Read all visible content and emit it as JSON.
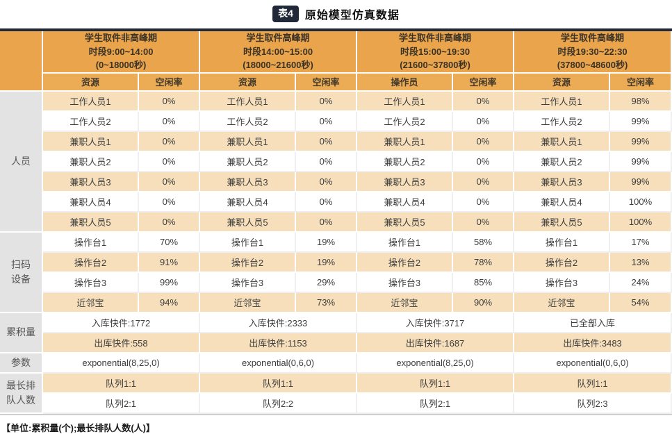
{
  "title": {
    "badge": "表4",
    "text": "原始模型仿真数据"
  },
  "footer": "【单位:累积量(个);最长排队人数(人)】",
  "colors": {
    "header_orange": "#E9A44C",
    "subheader_orange": "#ECAC55",
    "row_tan": "#F6DFBA",
    "label_gray": "#E3E3E3",
    "dark_navy": "#212838"
  },
  "header_groups": [
    {
      "title_lines": [
        "学生取件非高峰期",
        "时段9:00~14:00",
        "(0~18000秒)"
      ],
      "sub": [
        "资源",
        "空闲率"
      ]
    },
    {
      "title_lines": [
        "学生取件高峰期",
        "时段14:00~15:00",
        "(18000~21600秒)"
      ],
      "sub": [
        "资源",
        "空闲率"
      ]
    },
    {
      "title_lines": [
        "学生取件非高峰期",
        "时段15:00~19:30",
        "(21600~37800秒)"
      ],
      "sub": [
        "操作员",
        "空闲率"
      ]
    },
    {
      "title_lines": [
        "学生取件高峰期",
        "时段19:30~22:30",
        "(37800~48600秒)"
      ],
      "sub": [
        "资源",
        "空闲率"
      ]
    }
  ],
  "row_groups": [
    {
      "label": "人员",
      "type": "pairs",
      "rows": [
        {
          "pairs": [
            [
              "工作人员1",
              "0%"
            ],
            [
              "工作人员1",
              "0%"
            ],
            [
              "工作人员1",
              "0%"
            ],
            [
              "工作人员1",
              "98%"
            ]
          ]
        },
        {
          "pairs": [
            [
              "工作人员2",
              "0%"
            ],
            [
              "工作人员2",
              "0%"
            ],
            [
              "工作人员2",
              "0%"
            ],
            [
              "工作人员2",
              "99%"
            ]
          ]
        },
        {
          "pairs": [
            [
              "兼职人员1",
              "0%"
            ],
            [
              "兼职人员1",
              "0%"
            ],
            [
              "兼职人员1",
              "0%"
            ],
            [
              "兼职人员1",
              "99%"
            ]
          ]
        },
        {
          "pairs": [
            [
              "兼职人员2",
              "0%"
            ],
            [
              "兼职人员2",
              "0%"
            ],
            [
              "兼职人员2",
              "0%"
            ],
            [
              "兼职人员2",
              "99%"
            ]
          ]
        },
        {
          "pairs": [
            [
              "兼职人员3",
              "0%"
            ],
            [
              "兼职人员3",
              "0%"
            ],
            [
              "兼职人员3",
              "0%"
            ],
            [
              "兼职人员3",
              "99%"
            ]
          ]
        },
        {
          "pairs": [
            [
              "兼职人员4",
              "0%"
            ],
            [
              "兼职人员4",
              "0%"
            ],
            [
              "兼职人员4",
              "0%"
            ],
            [
              "兼职人员4",
              "100%"
            ]
          ]
        },
        {
          "pairs": [
            [
              "兼职人员5",
              "0%"
            ],
            [
              "兼职人员5",
              "0%"
            ],
            [
              "兼职人员5",
              "0%"
            ],
            [
              "兼职人员5",
              "100%"
            ]
          ]
        }
      ]
    },
    {
      "label": "扫码\n设备",
      "type": "pairs",
      "rows": [
        {
          "pairs": [
            [
              "操作台1",
              "70%"
            ],
            [
              "操作台1",
              "19%"
            ],
            [
              "操作台1",
              "58%"
            ],
            [
              "操作台1",
              "17%"
            ]
          ]
        },
        {
          "pairs": [
            [
              "操作台2",
              "91%"
            ],
            [
              "操作台2",
              "19%"
            ],
            [
              "操作台2",
              "78%"
            ],
            [
              "操作台2",
              "13%"
            ]
          ]
        },
        {
          "pairs": [
            [
              "操作台3",
              "99%"
            ],
            [
              "操作台3",
              "29%"
            ],
            [
              "操作台3",
              "85%"
            ],
            [
              "操作台3",
              "24%"
            ]
          ]
        },
        {
          "pairs": [
            [
              "近邻宝",
              "94%"
            ],
            [
              "近邻宝",
              "73%"
            ],
            [
              "近邻宝",
              "90%"
            ],
            [
              "近邻宝",
              "54%"
            ]
          ]
        }
      ]
    },
    {
      "label": "累积量",
      "type": "span",
      "rows": [
        {
          "cells": [
            "入库快件:1772",
            "入库快件:2333",
            "入库快件:3717",
            "已全部入库"
          ]
        },
        {
          "cells": [
            "出库快件:558",
            "出库快件:1153",
            "出库快件:1687",
            "出库快件:3483"
          ]
        }
      ]
    },
    {
      "label": "参数",
      "type": "span",
      "rows": [
        {
          "cells": [
            "exponential(8,25,0)",
            "exponential(0,6,0)",
            "exponential(8,25,0)",
            "exponential(0,6,0)"
          ]
        }
      ]
    },
    {
      "label": "最长排\n队人数",
      "type": "span",
      "rows": [
        {
          "cells": [
            "队列1:1",
            "队列1:1",
            "队列1:1",
            "队列1:1"
          ]
        },
        {
          "cells": [
            "队列2:1",
            "队列2:2",
            "队列2:1",
            "队列2:3"
          ]
        }
      ]
    }
  ]
}
